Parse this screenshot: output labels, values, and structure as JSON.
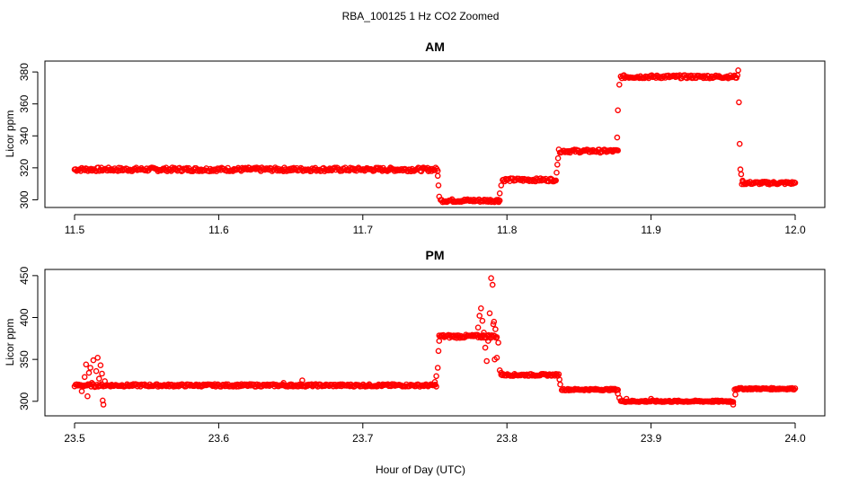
{
  "figure": {
    "title": "RBA_100125  1 Hz CO2 Zoomed",
    "xlabel": "Hour of Day (UTC)"
  },
  "chart_data": [
    {
      "type": "scatter",
      "title": "AM",
      "xlabel": "Hour of Day (UTC)",
      "ylabel": "Licor ppm",
      "xlim": [
        11.5,
        12.0
      ],
      "ylim": [
        298,
        384
      ],
      "xticks": [
        "11.5",
        "11.6",
        "11.7",
        "11.8",
        "11.9",
        "12.0"
      ],
      "xtick_values": [
        11.5,
        11.6,
        11.7,
        11.8,
        11.9,
        12.0
      ],
      "yticks": [
        "300",
        "320",
        "340",
        "360",
        "380"
      ],
      "ytick_values": [
        300,
        320,
        340,
        360,
        380
      ],
      "marker": "open-circle",
      "grid": false,
      "segments": [
        {
          "x": [
            11.5,
            11.752
          ],
          "y": 319,
          "noise": 1.2
        },
        {
          "x": [
            11.754,
            11.795
          ],
          "y": 299.5,
          "noise": 1.0
        },
        {
          "x": [
            11.797,
            11.834
          ],
          "y": 312.5,
          "noise": 1.0
        },
        {
          "x": [
            11.836,
            11.877
          ],
          "y": 330.5,
          "noise": 1.0
        },
        {
          "x": [
            11.879,
            11.96
          ],
          "y": 377,
          "noise": 1.0
        },
        {
          "x": [
            11.963,
            12.0
          ],
          "y": 310.5,
          "noise": 0.9
        }
      ],
      "points": [
        {
          "x": 11.752,
          "y": 315
        },
        {
          "x": 11.7525,
          "y": 309
        },
        {
          "x": 11.753,
          "y": 302
        },
        {
          "x": 11.794,
          "y": 300
        },
        {
          "x": 11.795,
          "y": 304
        },
        {
          "x": 11.796,
          "y": 309
        },
        {
          "x": 11.8345,
          "y": 317
        },
        {
          "x": 11.835,
          "y": 322
        },
        {
          "x": 11.8355,
          "y": 326
        },
        {
          "x": 11.8765,
          "y": 339
        },
        {
          "x": 11.877,
          "y": 356
        },
        {
          "x": 11.878,
          "y": 372
        },
        {
          "x": 11.9605,
          "y": 381
        },
        {
          "x": 11.961,
          "y": 361
        },
        {
          "x": 11.9615,
          "y": 335
        },
        {
          "x": 11.962,
          "y": 319
        },
        {
          "x": 11.9625,
          "y": 316
        },
        {
          "x": 11.9635,
          "y": 312
        }
      ]
    },
    {
      "type": "scatter",
      "title": "PM",
      "xlabel": "Hour of Day (UTC)",
      "ylabel": "Licor ppm",
      "xlim": [
        23.5,
        24.0
      ],
      "ylim": [
        288,
        452
      ],
      "xticks": [
        "23.5",
        "23.6",
        "23.7",
        "23.8",
        "23.9",
        "24.0"
      ],
      "xtick_values": [
        23.5,
        23.6,
        23.7,
        23.8,
        23.9,
        24.0
      ],
      "yticks": [
        "300",
        "350",
        "400",
        "450"
      ],
      "ytick_values": [
        300,
        350,
        400,
        450
      ],
      "marker": "open-circle",
      "grid": false,
      "segments": [
        {
          "x": [
            23.5,
            23.751
          ],
          "y": 319,
          "noise": 1.5
        },
        {
          "x": [
            23.753,
            23.793
          ],
          "y": 377.5,
          "noise": 2.0
        },
        {
          "x": [
            23.796,
            23.836
          ],
          "y": 331.5,
          "noise": 1.2
        },
        {
          "x": [
            23.838,
            23.877
          ],
          "y": 314,
          "noise": 1.0
        },
        {
          "x": [
            23.879,
            23.957
          ],
          "y": 300,
          "noise": 1.0
        },
        {
          "x": [
            23.959,
            24.0
          ],
          "y": 315,
          "noise": 1.0
        }
      ],
      "points": [
        {
          "x": 23.505,
          "y": 312
        },
        {
          "x": 23.507,
          "y": 329
        },
        {
          "x": 23.508,
          "y": 344
        },
        {
          "x": 23.509,
          "y": 306
        },
        {
          "x": 23.51,
          "y": 334
        },
        {
          "x": 23.511,
          "y": 340
        },
        {
          "x": 23.512,
          "y": 322
        },
        {
          "x": 23.513,
          "y": 349
        },
        {
          "x": 23.514,
          "y": 317
        },
        {
          "x": 23.515,
          "y": 336
        },
        {
          "x": 23.516,
          "y": 352
        },
        {
          "x": 23.517,
          "y": 327
        },
        {
          "x": 23.518,
          "y": 343
        },
        {
          "x": 23.519,
          "y": 333
        },
        {
          "x": 23.5195,
          "y": 301
        },
        {
          "x": 23.52,
          "y": 296
        },
        {
          "x": 23.521,
          "y": 324
        },
        {
          "x": 23.645,
          "y": 322
        },
        {
          "x": 23.65,
          "y": 318
        },
        {
          "x": 23.658,
          "y": 325
        },
        {
          "x": 23.75,
          "y": 323
        },
        {
          "x": 23.751,
          "y": 330
        },
        {
          "x": 23.752,
          "y": 340
        },
        {
          "x": 23.7525,
          "y": 360
        },
        {
          "x": 23.753,
          "y": 372
        },
        {
          "x": 23.78,
          "y": 388
        },
        {
          "x": 23.781,
          "y": 402
        },
        {
          "x": 23.782,
          "y": 411
        },
        {
          "x": 23.783,
          "y": 396
        },
        {
          "x": 23.784,
          "y": 382
        },
        {
          "x": 23.785,
          "y": 364
        },
        {
          "x": 23.786,
          "y": 348
        },
        {
          "x": 23.787,
          "y": 372
        },
        {
          "x": 23.788,
          "y": 405
        },
        {
          "x": 23.789,
          "y": 447
        },
        {
          "x": 23.79,
          "y": 439
        },
        {
          "x": 23.7905,
          "y": 392
        },
        {
          "x": 23.791,
          "y": 395
        },
        {
          "x": 23.7915,
          "y": 350
        },
        {
          "x": 23.792,
          "y": 386
        },
        {
          "x": 23.793,
          "y": 352
        },
        {
          "x": 23.794,
          "y": 370
        },
        {
          "x": 23.795,
          "y": 337
        },
        {
          "x": 23.796,
          "y": 334
        },
        {
          "x": 23.8365,
          "y": 326
        },
        {
          "x": 23.837,
          "y": 320
        },
        {
          "x": 23.877,
          "y": 309
        },
        {
          "x": 23.878,
          "y": 304
        },
        {
          "x": 23.883,
          "y": 303
        },
        {
          "x": 23.9,
          "y": 303
        },
        {
          "x": 23.957,
          "y": 296
        },
        {
          "x": 23.958,
          "y": 314
        },
        {
          "x": 23.9585,
          "y": 308
        }
      ]
    }
  ],
  "colors": {
    "points": "#ff0000",
    "axes": "#000000"
  }
}
